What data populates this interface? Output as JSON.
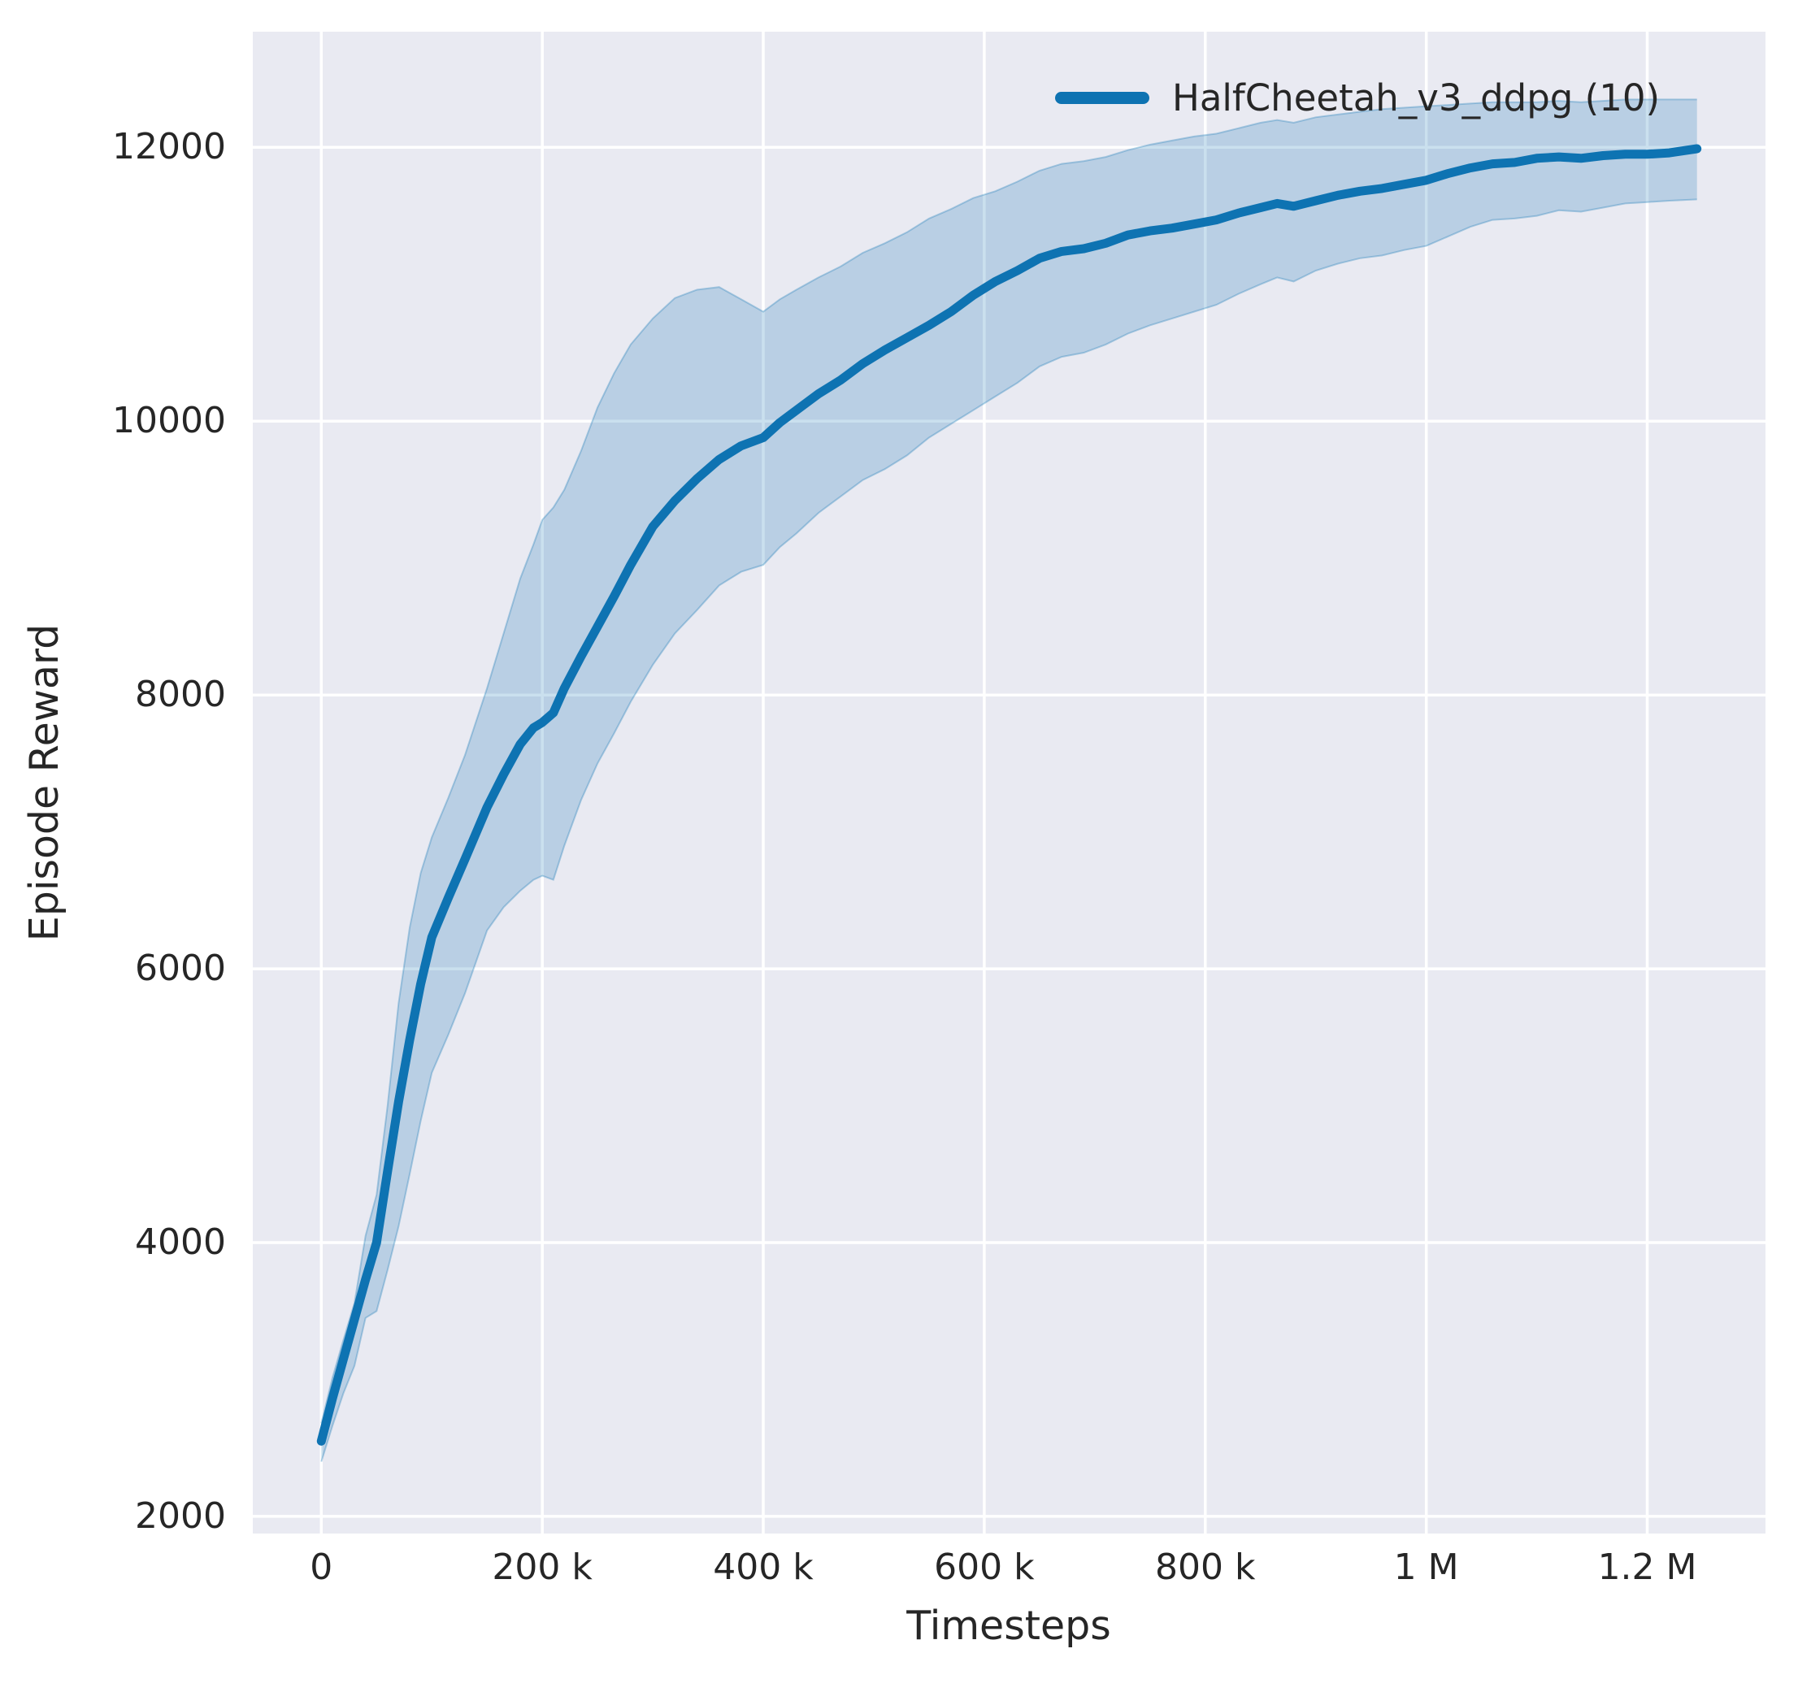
{
  "figure": {
    "background": "#ffffff"
  },
  "chart_data": {
    "type": "line",
    "title": "",
    "xlabel": "Timesteps",
    "ylabel": "Episode Reward",
    "xlim": [
      -62000,
      1307000
    ],
    "ylim": [
      1875,
      12845
    ],
    "grid": true,
    "plot_background": "#e9eaf2",
    "gridline_color": "#ffffff",
    "x_ticks": [
      {
        "v": 0,
        "label": "0"
      },
      {
        "v": 200000,
        "label": "200 k"
      },
      {
        "v": 400000,
        "label": "400 k"
      },
      {
        "v": 600000,
        "label": "600 k"
      },
      {
        "v": 800000,
        "label": "800 k"
      },
      {
        "v": 1000000,
        "label": "1 M"
      },
      {
        "v": 1200000,
        "label": "1.2 M"
      }
    ],
    "y_ticks": [
      {
        "v": 2000,
        "label": "2000"
      },
      {
        "v": 4000,
        "label": "4000"
      },
      {
        "v": 6000,
        "label": "6000"
      },
      {
        "v": 8000,
        "label": "8000"
      },
      {
        "v": 10000,
        "label": "10000"
      },
      {
        "v": 12000,
        "label": "12000"
      }
    ],
    "legend": {
      "position": "upper right",
      "entries": [
        {
          "label": "HalfCheetah_v3_ddpg (10)",
          "color": "#0e73b2"
        }
      ]
    },
    "series": [
      {
        "name": "HalfCheetah_v3_ddpg (10)",
        "color": "#0e73b2",
        "band_alpha": 0.22,
        "x": [
          0,
          10000,
          20000,
          30000,
          40000,
          50000,
          60000,
          70000,
          80000,
          90000,
          100000,
          115000,
          130000,
          150000,
          165000,
          180000,
          192000,
          200000,
          210000,
          220000,
          235000,
          250000,
          265000,
          280000,
          300000,
          320000,
          340000,
          360000,
          380000,
          400000,
          415000,
          430000,
          450000,
          470000,
          490000,
          510000,
          530000,
          550000,
          570000,
          590000,
          610000,
          630000,
          650000,
          670000,
          690000,
          710000,
          730000,
          750000,
          770000,
          790000,
          810000,
          830000,
          850000,
          865000,
          880000,
          900000,
          920000,
          940000,
          960000,
          980000,
          1000000,
          1020000,
          1040000,
          1060000,
          1080000,
          1100000,
          1120000,
          1140000,
          1160000,
          1180000,
          1200000,
          1220000,
          1245000
        ],
        "y": [
          2550,
          2860,
          3150,
          3440,
          3730,
          4000,
          4520,
          5030,
          5480,
          5890,
          6230,
          6520,
          6800,
          7180,
          7420,
          7640,
          7760,
          7800,
          7870,
          8050,
          8280,
          8500,
          8720,
          8950,
          9230,
          9420,
          9580,
          9720,
          9820,
          9880,
          9990,
          10080,
          10200,
          10300,
          10420,
          10520,
          10610,
          10700,
          10800,
          10920,
          11020,
          11100,
          11190,
          11240,
          11260,
          11300,
          11360,
          11390,
          11410,
          11440,
          11470,
          11520,
          11560,
          11590,
          11570,
          11610,
          11650,
          11680,
          11700,
          11730,
          11760,
          11810,
          11850,
          11880,
          11890,
          11920,
          11930,
          11920,
          11940,
          11950,
          11950,
          11960,
          11990
        ],
        "band_lower": [
          2400,
          2660,
          2900,
          3100,
          3450,
          3500,
          3800,
          4120,
          4500,
          4890,
          5240,
          5520,
          5820,
          6280,
          6450,
          6570,
          6650,
          6680,
          6650,
          6900,
          7230,
          7500,
          7720,
          7950,
          8220,
          8450,
          8620,
          8800,
          8900,
          8950,
          9080,
          9180,
          9330,
          9450,
          9570,
          9650,
          9750,
          9880,
          9980,
          10080,
          10180,
          10280,
          10400,
          10470,
          10500,
          10560,
          10640,
          10700,
          10750,
          10800,
          10850,
          10930,
          11000,
          11050,
          11020,
          11100,
          11150,
          11190,
          11210,
          11250,
          11280,
          11350,
          11420,
          11470,
          11480,
          11500,
          11540,
          11530,
          11560,
          11590,
          11600,
          11610,
          11620
        ],
        "band_upper": [
          2680,
          3010,
          3290,
          3560,
          4050,
          4350,
          5000,
          5750,
          6300,
          6700,
          6960,
          7250,
          7560,
          8050,
          8450,
          8850,
          9100,
          9280,
          9370,
          9500,
          9780,
          10100,
          10350,
          10560,
          10750,
          10900,
          10960,
          10980,
          10890,
          10800,
          10890,
          10960,
          11050,
          11130,
          11230,
          11300,
          11380,
          11480,
          11550,
          11630,
          11680,
          11750,
          11830,
          11880,
          11900,
          11930,
          11980,
          12020,
          12050,
          12080,
          12100,
          12140,
          12180,
          12200,
          12180,
          12220,
          12240,
          12260,
          12280,
          12290,
          12300,
          12310,
          12320,
          12330,
          12330,
          12330,
          12340,
          12330,
          12340,
          12350,
          12350,
          12350,
          12350
        ]
      }
    ]
  }
}
